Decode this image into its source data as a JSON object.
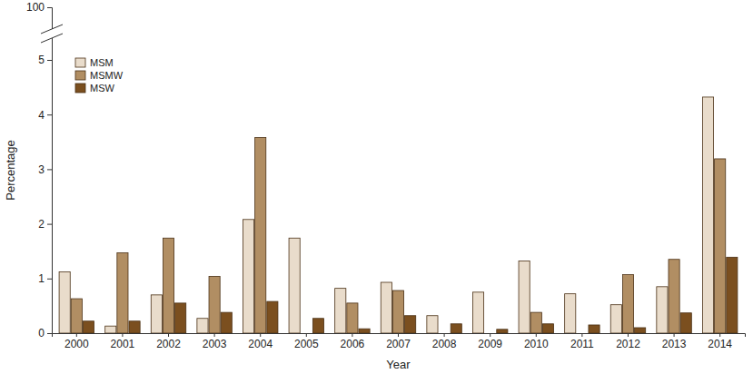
{
  "chart_data": {
    "type": "bar",
    "x_label": "Year",
    "y_label": "Percentage",
    "categories": [
      "2000",
      "2001",
      "2002",
      "2003",
      "2004",
      "2005",
      "2006",
      "2007",
      "2008",
      "2009",
      "2010",
      "2011",
      "2012",
      "2013",
      "2014"
    ],
    "series": [
      {
        "name": "MSM",
        "color": "#e9dccb",
        "values": [
          1.12,
          0.13,
          0.7,
          0.27,
          2.08,
          1.74,
          0.82,
          0.93,
          0.32,
          0.75,
          1.32,
          0.72,
          0.52,
          0.85,
          4.32
        ]
      },
      {
        "name": "MSMW",
        "color": "#b18e63",
        "values": [
          0.63,
          1.47,
          1.74,
          1.04,
          3.58,
          0,
          0.55,
          0.78,
          0,
          0,
          0.38,
          0,
          1.07,
          1.35,
          3.19
        ]
      },
      {
        "name": "MSW",
        "color": "#7b4f1f",
        "values": [
          0.22,
          0.22,
          0.55,
          0.38,
          0.58,
          0.27,
          0.08,
          0.32,
          0.17,
          0.07,
          0.17,
          0.15,
          0.1,
          0.37,
          1.39
        ]
      }
    ],
    "ylim": [
      0,
      100
    ],
    "yticks": [
      0,
      1,
      2,
      3,
      4,
      5,
      100
    ],
    "grid": false,
    "legend": "top-left"
  }
}
